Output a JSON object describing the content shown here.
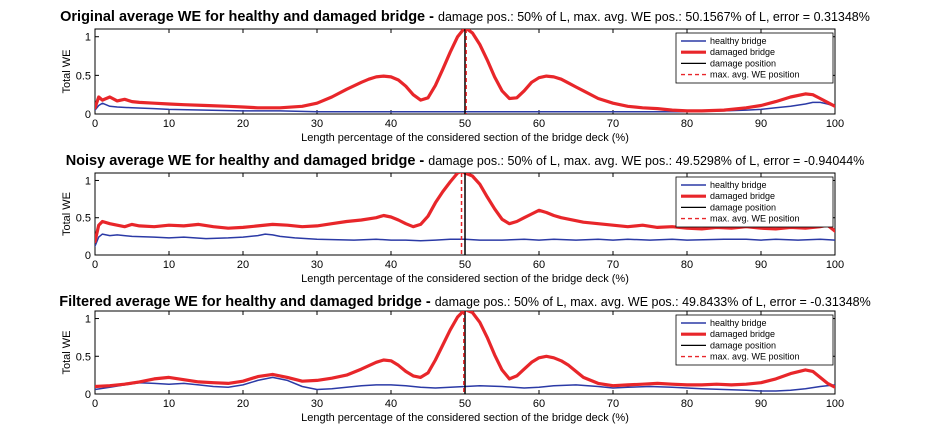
{
  "chart_data": [
    {
      "type": "line",
      "title": "Original average WE for healthy and damaged bridge -",
      "subtitle": "damage pos.: 50% of L, max. avg. WE pos.: 50.1567% of L, error = 0.31348%",
      "xlabel": "Length percentage of the considered section of the bridge deck (%)",
      "ylabel": "Total WE",
      "xlim": [
        0,
        100
      ],
      "ylim": [
        0,
        1.1
      ],
      "xticks": [
        "0",
        "10",
        "20",
        "30",
        "40",
        "50",
        "60",
        "70",
        "80",
        "90",
        "100"
      ],
      "yticks": [
        "0",
        "0.5",
        "1"
      ],
      "legend_position": "top-right",
      "damage_position": 50,
      "max_position": 50.1567,
      "series": [
        {
          "name": "healthy bridge",
          "color": "#2b3aa6",
          "x": [
            0,
            0.5,
            1,
            2,
            3,
            5,
            8,
            10,
            15,
            20,
            25,
            30,
            35,
            40,
            45,
            50,
            55,
            60,
            65,
            70,
            75,
            80,
            85,
            88,
            90,
            92,
            94,
            96,
            97,
            98,
            99,
            100
          ],
          "y": [
            0.05,
            0.11,
            0.14,
            0.1,
            0.09,
            0.08,
            0.07,
            0.06,
            0.05,
            0.04,
            0.04,
            0.03,
            0.03,
            0.03,
            0.03,
            0.03,
            0.03,
            0.03,
            0.03,
            0.03,
            0.03,
            0.03,
            0.04,
            0.05,
            0.06,
            0.08,
            0.1,
            0.13,
            0.15,
            0.15,
            0.13,
            0.1
          ]
        },
        {
          "name": "damaged bridge",
          "color": "#e8262a",
          "x": [
            0,
            0.5,
            1,
            2,
            3,
            4,
            5,
            6,
            8,
            10,
            12,
            15,
            18,
            20,
            22,
            25,
            28,
            30,
            32,
            34,
            36,
            37,
            38,
            39,
            40,
            41,
            42,
            43,
            44,
            45,
            46,
            47,
            48,
            49,
            50,
            51,
            52,
            53,
            54,
            55,
            56,
            57,
            58,
            59,
            60,
            61,
            62,
            63,
            64,
            65,
            66,
            68,
            70,
            72,
            74,
            76,
            78,
            80,
            82,
            85,
            88,
            90,
            92,
            94,
            96,
            97,
            98,
            99,
            100
          ],
          "y": [
            0.08,
            0.22,
            0.18,
            0.22,
            0.17,
            0.19,
            0.16,
            0.15,
            0.14,
            0.13,
            0.12,
            0.11,
            0.1,
            0.09,
            0.08,
            0.08,
            0.1,
            0.14,
            0.22,
            0.32,
            0.41,
            0.45,
            0.48,
            0.49,
            0.48,
            0.44,
            0.36,
            0.25,
            0.18,
            0.21,
            0.37,
            0.58,
            0.8,
            1.0,
            1.12,
            1.05,
            0.9,
            0.7,
            0.48,
            0.3,
            0.2,
            0.21,
            0.3,
            0.41,
            0.47,
            0.49,
            0.48,
            0.45,
            0.4,
            0.35,
            0.3,
            0.2,
            0.14,
            0.1,
            0.08,
            0.07,
            0.05,
            0.04,
            0.04,
            0.05,
            0.08,
            0.11,
            0.16,
            0.22,
            0.26,
            0.25,
            0.2,
            0.15,
            0.1
          ]
        }
      ]
    },
    {
      "type": "line",
      "title": "Noisy average WE for healthy and damaged bridge -",
      "subtitle": "damage pos.: 50% of L, max. avg. WE pos.: 49.5298% of L, error = -0.94044%",
      "xlabel": "Length percentage of the considered section of the bridge deck (%)",
      "ylabel": "Total WE",
      "xlim": [
        0,
        100
      ],
      "ylim": [
        0,
        1.1
      ],
      "xticks": [
        "0",
        "10",
        "20",
        "30",
        "40",
        "50",
        "60",
        "70",
        "80",
        "90",
        "100"
      ],
      "yticks": [
        "0",
        "0.5",
        "1"
      ],
      "legend_position": "top-right",
      "damage_position": 50,
      "max_position": 49.5298,
      "series": [
        {
          "name": "healthy bridge",
          "color": "#2b3aa6",
          "x": [
            0,
            0.5,
            1,
            2,
            3,
            5,
            8,
            10,
            12,
            15,
            18,
            20,
            22,
            23,
            24,
            25,
            27,
            30,
            35,
            38,
            40,
            42,
            44,
            46,
            48,
            50,
            52,
            55,
            58,
            60,
            62,
            65,
            68,
            70,
            72,
            75,
            78,
            80,
            85,
            88,
            90,
            92,
            95,
            98,
            100
          ],
          "y": [
            0.12,
            0.24,
            0.28,
            0.26,
            0.27,
            0.25,
            0.24,
            0.23,
            0.24,
            0.22,
            0.23,
            0.24,
            0.26,
            0.28,
            0.27,
            0.25,
            0.23,
            0.21,
            0.2,
            0.21,
            0.2,
            0.2,
            0.19,
            0.2,
            0.21,
            0.21,
            0.2,
            0.2,
            0.21,
            0.2,
            0.21,
            0.2,
            0.21,
            0.2,
            0.21,
            0.2,
            0.21,
            0.2,
            0.21,
            0.21,
            0.2,
            0.21,
            0.2,
            0.21,
            0.2
          ]
        },
        {
          "name": "damaged bridge",
          "color": "#e8262a",
          "x": [
            0,
            0.5,
            1,
            2,
            3,
            4,
            5,
            6,
            8,
            10,
            12,
            14,
            16,
            18,
            20,
            22,
            24,
            26,
            28,
            30,
            32,
            34,
            36,
            38,
            39,
            40,
            41,
            42,
            43,
            44,
            45,
            46,
            47,
            48,
            49,
            49.5,
            50,
            51,
            52,
            53,
            54,
            55,
            56,
            57,
            58,
            59,
            60,
            61,
            62,
            63,
            64,
            65,
            66,
            68,
            70,
            72,
            74,
            76,
            78,
            80,
            82,
            84,
            86,
            88,
            90,
            92,
            94,
            96,
            98,
            99,
            100
          ],
          "y": [
            0.18,
            0.4,
            0.45,
            0.42,
            0.4,
            0.38,
            0.41,
            0.39,
            0.38,
            0.4,
            0.39,
            0.41,
            0.38,
            0.36,
            0.37,
            0.39,
            0.41,
            0.4,
            0.38,
            0.39,
            0.42,
            0.45,
            0.47,
            0.5,
            0.53,
            0.51,
            0.47,
            0.42,
            0.38,
            0.41,
            0.52,
            0.7,
            0.85,
            0.98,
            1.1,
            1.12,
            1.1,
            1.06,
            0.95,
            0.78,
            0.62,
            0.48,
            0.42,
            0.45,
            0.5,
            0.55,
            0.6,
            0.57,
            0.53,
            0.5,
            0.48,
            0.46,
            0.44,
            0.42,
            0.4,
            0.38,
            0.4,
            0.37,
            0.38,
            0.36,
            0.35,
            0.37,
            0.36,
            0.38,
            0.36,
            0.35,
            0.37,
            0.36,
            0.38,
            0.4,
            0.32
          ]
        }
      ]
    },
    {
      "type": "line",
      "title": "Filtered average WE for healthy and damaged bridge -",
      "subtitle": "damage pos.: 50% of L, max. avg. WE pos.: 49.8433% of L, error = -0.31348%",
      "xlabel": "Length percentage of the considered section of the bridge deck (%)",
      "ylabel": "Total WE",
      "xlim": [
        0,
        100
      ],
      "ylim": [
        0,
        1.1
      ],
      "xticks": [
        "0",
        "10",
        "20",
        "30",
        "40",
        "50",
        "60",
        "70",
        "80",
        "90",
        "100"
      ],
      "yticks": [
        "0",
        "0.5",
        "1"
      ],
      "legend_position": "top-right",
      "damage_position": 50,
      "max_position": 49.8433,
      "series": [
        {
          "name": "healthy bridge",
          "color": "#2b3aa6",
          "x": [
            0,
            2,
            4,
            6,
            8,
            10,
            12,
            14,
            16,
            18,
            20,
            22,
            24,
            26,
            28,
            30,
            32,
            34,
            36,
            38,
            40,
            42,
            44,
            46,
            48,
            50,
            52,
            55,
            58,
            60,
            62,
            65,
            68,
            70,
            72,
            75,
            78,
            80,
            82,
            85,
            88,
            90,
            92,
            94,
            96,
            98,
            100
          ],
          "y": [
            0.06,
            0.09,
            0.12,
            0.15,
            0.14,
            0.13,
            0.14,
            0.12,
            0.1,
            0.09,
            0.12,
            0.18,
            0.22,
            0.18,
            0.1,
            0.06,
            0.07,
            0.09,
            0.11,
            0.12,
            0.12,
            0.11,
            0.09,
            0.08,
            0.09,
            0.1,
            0.11,
            0.1,
            0.08,
            0.09,
            0.11,
            0.12,
            0.1,
            0.08,
            0.09,
            0.1,
            0.09,
            0.08,
            0.07,
            0.06,
            0.05,
            0.04,
            0.04,
            0.05,
            0.07,
            0.1,
            0.12
          ]
        },
        {
          "name": "damaged bridge",
          "color": "#e8262a",
          "x": [
            0,
            2,
            4,
            6,
            8,
            10,
            12,
            14,
            16,
            18,
            20,
            22,
            24,
            26,
            28,
            30,
            32,
            34,
            36,
            38,
            39,
            40,
            41,
            42,
            43,
            44,
            45,
            46,
            47,
            48,
            49,
            50,
            51,
            52,
            53,
            54,
            55,
            56,
            57,
            58,
            59,
            60,
            61,
            62,
            63,
            64,
            65,
            66,
            68,
            70,
            72,
            74,
            76,
            78,
            80,
            82,
            84,
            86,
            88,
            90,
            92,
            94,
            96,
            97,
            98,
            99,
            100
          ],
          "y": [
            0.1,
            0.11,
            0.13,
            0.16,
            0.2,
            0.22,
            0.19,
            0.16,
            0.15,
            0.14,
            0.17,
            0.23,
            0.26,
            0.22,
            0.17,
            0.18,
            0.21,
            0.25,
            0.33,
            0.42,
            0.45,
            0.44,
            0.38,
            0.3,
            0.24,
            0.22,
            0.28,
            0.45,
            0.65,
            0.85,
            1.02,
            1.12,
            1.08,
            0.95,
            0.75,
            0.52,
            0.32,
            0.2,
            0.24,
            0.33,
            0.42,
            0.48,
            0.5,
            0.48,
            0.44,
            0.38,
            0.3,
            0.22,
            0.14,
            0.11,
            0.12,
            0.13,
            0.14,
            0.13,
            0.12,
            0.12,
            0.13,
            0.12,
            0.13,
            0.15,
            0.2,
            0.27,
            0.32,
            0.3,
            0.22,
            0.14,
            0.09
          ]
        }
      ]
    }
  ],
  "legend": {
    "healthy": "healthy bridge",
    "damaged": "damaged bridge",
    "damage_pos": "damage position",
    "max_pos": "max. avg. WE position"
  },
  "colors": {
    "healthy": "#2b3aa6",
    "damaged": "#e8262a",
    "damage_line": "#000000",
    "max_line": "#e8262a"
  }
}
